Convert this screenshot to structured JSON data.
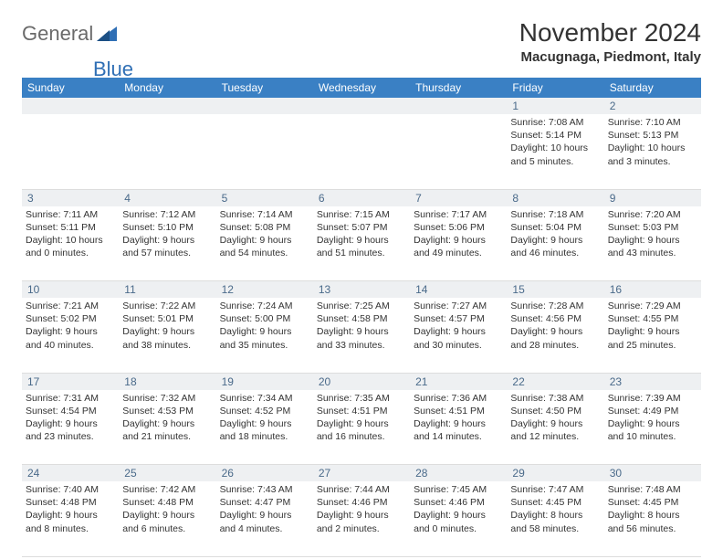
{
  "brand": {
    "part1": "General",
    "part2": "Blue"
  },
  "title": "November 2024",
  "location": "Macugnaga, Piedmont, Italy",
  "colors": {
    "header_bg": "#3a80c4",
    "header_text": "#ffffff",
    "daynum_bg": "#eef0f2",
    "daynum_text": "#4a6a8a",
    "body_text": "#333333",
    "brand_gray": "#6a6a6a",
    "brand_blue": "#2f6fb5"
  },
  "typography": {
    "title_fontsize": 28,
    "location_fontsize": 15,
    "dayheader_fontsize": 12,
    "cell_fontsize": 10.5
  },
  "day_names": [
    "Sunday",
    "Monday",
    "Tuesday",
    "Wednesday",
    "Thursday",
    "Friday",
    "Saturday"
  ],
  "weeks": [
    {
      "nums": [
        "",
        "",
        "",
        "",
        "",
        "1",
        "2"
      ],
      "cells": [
        null,
        null,
        null,
        null,
        null,
        {
          "sunrise": "Sunrise: 7:08 AM",
          "sunset": "Sunset: 5:14 PM",
          "daylight1": "Daylight: 10 hours",
          "daylight2": "and 5 minutes."
        },
        {
          "sunrise": "Sunrise: 7:10 AM",
          "sunset": "Sunset: 5:13 PM",
          "daylight1": "Daylight: 10 hours",
          "daylight2": "and 3 minutes."
        }
      ]
    },
    {
      "nums": [
        "3",
        "4",
        "5",
        "6",
        "7",
        "8",
        "9"
      ],
      "cells": [
        {
          "sunrise": "Sunrise: 7:11 AM",
          "sunset": "Sunset: 5:11 PM",
          "daylight1": "Daylight: 10 hours",
          "daylight2": "and 0 minutes."
        },
        {
          "sunrise": "Sunrise: 7:12 AM",
          "sunset": "Sunset: 5:10 PM",
          "daylight1": "Daylight: 9 hours",
          "daylight2": "and 57 minutes."
        },
        {
          "sunrise": "Sunrise: 7:14 AM",
          "sunset": "Sunset: 5:08 PM",
          "daylight1": "Daylight: 9 hours",
          "daylight2": "and 54 minutes."
        },
        {
          "sunrise": "Sunrise: 7:15 AM",
          "sunset": "Sunset: 5:07 PM",
          "daylight1": "Daylight: 9 hours",
          "daylight2": "and 51 minutes."
        },
        {
          "sunrise": "Sunrise: 7:17 AM",
          "sunset": "Sunset: 5:06 PM",
          "daylight1": "Daylight: 9 hours",
          "daylight2": "and 49 minutes."
        },
        {
          "sunrise": "Sunrise: 7:18 AM",
          "sunset": "Sunset: 5:04 PM",
          "daylight1": "Daylight: 9 hours",
          "daylight2": "and 46 minutes."
        },
        {
          "sunrise": "Sunrise: 7:20 AM",
          "sunset": "Sunset: 5:03 PM",
          "daylight1": "Daylight: 9 hours",
          "daylight2": "and 43 minutes."
        }
      ]
    },
    {
      "nums": [
        "10",
        "11",
        "12",
        "13",
        "14",
        "15",
        "16"
      ],
      "cells": [
        {
          "sunrise": "Sunrise: 7:21 AM",
          "sunset": "Sunset: 5:02 PM",
          "daylight1": "Daylight: 9 hours",
          "daylight2": "and 40 minutes."
        },
        {
          "sunrise": "Sunrise: 7:22 AM",
          "sunset": "Sunset: 5:01 PM",
          "daylight1": "Daylight: 9 hours",
          "daylight2": "and 38 minutes."
        },
        {
          "sunrise": "Sunrise: 7:24 AM",
          "sunset": "Sunset: 5:00 PM",
          "daylight1": "Daylight: 9 hours",
          "daylight2": "and 35 minutes."
        },
        {
          "sunrise": "Sunrise: 7:25 AM",
          "sunset": "Sunset: 4:58 PM",
          "daylight1": "Daylight: 9 hours",
          "daylight2": "and 33 minutes."
        },
        {
          "sunrise": "Sunrise: 7:27 AM",
          "sunset": "Sunset: 4:57 PM",
          "daylight1": "Daylight: 9 hours",
          "daylight2": "and 30 minutes."
        },
        {
          "sunrise": "Sunrise: 7:28 AM",
          "sunset": "Sunset: 4:56 PM",
          "daylight1": "Daylight: 9 hours",
          "daylight2": "and 28 minutes."
        },
        {
          "sunrise": "Sunrise: 7:29 AM",
          "sunset": "Sunset: 4:55 PM",
          "daylight1": "Daylight: 9 hours",
          "daylight2": "and 25 minutes."
        }
      ]
    },
    {
      "nums": [
        "17",
        "18",
        "19",
        "20",
        "21",
        "22",
        "23"
      ],
      "cells": [
        {
          "sunrise": "Sunrise: 7:31 AM",
          "sunset": "Sunset: 4:54 PM",
          "daylight1": "Daylight: 9 hours",
          "daylight2": "and 23 minutes."
        },
        {
          "sunrise": "Sunrise: 7:32 AM",
          "sunset": "Sunset: 4:53 PM",
          "daylight1": "Daylight: 9 hours",
          "daylight2": "and 21 minutes."
        },
        {
          "sunrise": "Sunrise: 7:34 AM",
          "sunset": "Sunset: 4:52 PM",
          "daylight1": "Daylight: 9 hours",
          "daylight2": "and 18 minutes."
        },
        {
          "sunrise": "Sunrise: 7:35 AM",
          "sunset": "Sunset: 4:51 PM",
          "daylight1": "Daylight: 9 hours",
          "daylight2": "and 16 minutes."
        },
        {
          "sunrise": "Sunrise: 7:36 AM",
          "sunset": "Sunset: 4:51 PM",
          "daylight1": "Daylight: 9 hours",
          "daylight2": "and 14 minutes."
        },
        {
          "sunrise": "Sunrise: 7:38 AM",
          "sunset": "Sunset: 4:50 PM",
          "daylight1": "Daylight: 9 hours",
          "daylight2": "and 12 minutes."
        },
        {
          "sunrise": "Sunrise: 7:39 AM",
          "sunset": "Sunset: 4:49 PM",
          "daylight1": "Daylight: 9 hours",
          "daylight2": "and 10 minutes."
        }
      ]
    },
    {
      "nums": [
        "24",
        "25",
        "26",
        "27",
        "28",
        "29",
        "30"
      ],
      "cells": [
        {
          "sunrise": "Sunrise: 7:40 AM",
          "sunset": "Sunset: 4:48 PM",
          "daylight1": "Daylight: 9 hours",
          "daylight2": "and 8 minutes."
        },
        {
          "sunrise": "Sunrise: 7:42 AM",
          "sunset": "Sunset: 4:48 PM",
          "daylight1": "Daylight: 9 hours",
          "daylight2": "and 6 minutes."
        },
        {
          "sunrise": "Sunrise: 7:43 AM",
          "sunset": "Sunset: 4:47 PM",
          "daylight1": "Daylight: 9 hours",
          "daylight2": "and 4 minutes."
        },
        {
          "sunrise": "Sunrise: 7:44 AM",
          "sunset": "Sunset: 4:46 PM",
          "daylight1": "Daylight: 9 hours",
          "daylight2": "and 2 minutes."
        },
        {
          "sunrise": "Sunrise: 7:45 AM",
          "sunset": "Sunset: 4:46 PM",
          "daylight1": "Daylight: 9 hours",
          "daylight2": "and 0 minutes."
        },
        {
          "sunrise": "Sunrise: 7:47 AM",
          "sunset": "Sunset: 4:45 PM",
          "daylight1": "Daylight: 8 hours",
          "daylight2": "and 58 minutes."
        },
        {
          "sunrise": "Sunrise: 7:48 AM",
          "sunset": "Sunset: 4:45 PM",
          "daylight1": "Daylight: 8 hours",
          "daylight2": "and 56 minutes."
        }
      ]
    }
  ]
}
